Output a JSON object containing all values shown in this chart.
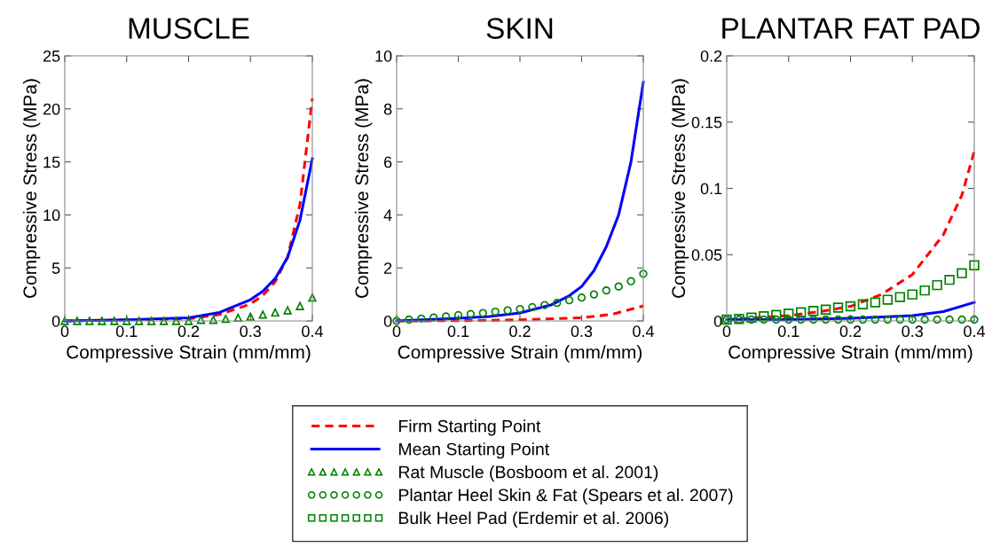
{
  "chart_data": [
    {
      "type": "line",
      "title": "MUSCLE",
      "xlabel": "Compressive Strain (mm/mm)",
      "ylabel": "Compressive Stress (MPa)",
      "xlim": [
        0,
        0.4
      ],
      "xticks": [
        0,
        0.1,
        0.2,
        0.3,
        0.4
      ],
      "ylim": [
        0,
        25
      ],
      "yticks": [
        0,
        5,
        10,
        15,
        20,
        25
      ],
      "grid": false,
      "legend": "bottom",
      "series": [
        {
          "name": "Firm Starting Point",
          "type": "line",
          "color": "#ff0000",
          "line_style": "dashed",
          "x": [
            0,
            0.1,
            0.2,
            0.25,
            0.3,
            0.32,
            0.34,
            0.36,
            0.38,
            0.4
          ],
          "values": [
            0,
            0.1,
            0.2,
            0.6,
            1.6,
            2.4,
            3.7,
            6,
            11,
            21
          ]
        },
        {
          "name": "Mean Starting Point",
          "type": "line",
          "color": "#0000ff",
          "line_style": "solid",
          "x": [
            0,
            0.1,
            0.2,
            0.25,
            0.3,
            0.32,
            0.34,
            0.36,
            0.38,
            0.4
          ],
          "values": [
            0,
            0.1,
            0.3,
            0.8,
            2.0,
            2.8,
            4.0,
            6.0,
            9.5,
            15.3
          ]
        },
        {
          "name": "Rat Muscle (Bosboom et al. 2001)",
          "type": "scatter",
          "color": "#008000",
          "marker": "triangle",
          "x": [
            0,
            0.02,
            0.04,
            0.06,
            0.08,
            0.1,
            0.12,
            0.14,
            0.16,
            0.18,
            0.2,
            0.22,
            0.24,
            0.26,
            0.28,
            0.3,
            0.32,
            0.34,
            0.36,
            0.38,
            0.4
          ],
          "values": [
            0,
            0,
            0,
            0,
            0,
            0,
            0,
            0,
            0,
            0,
            0,
            0.1,
            0.1,
            0.2,
            0.3,
            0.4,
            0.6,
            0.8,
            1.0,
            1.4,
            2.2
          ]
        }
      ]
    },
    {
      "type": "line",
      "title": "SKIN",
      "xlabel": "Compressive Strain (mm/mm)",
      "ylabel": "Compressive Stress (MPa)",
      "xlim": [
        0,
        0.4
      ],
      "xticks": [
        0,
        0.1,
        0.2,
        0.3,
        0.4
      ],
      "ylim": [
        0,
        10
      ],
      "yticks": [
        0,
        2,
        4,
        6,
        8,
        10
      ],
      "grid": false,
      "series": [
        {
          "type": "line",
          "color": "#ff0000",
          "line_style": "dashed",
          "x": [
            0,
            0.1,
            0.2,
            0.3,
            0.35,
            0.4
          ],
          "values": [
            0,
            0.01,
            0.04,
            0.12,
            0.25,
            0.57
          ]
        },
        {
          "type": "line",
          "color": "#0000ff",
          "line_style": "solid",
          "x": [
            0,
            0.1,
            0.15,
            0.2,
            0.25,
            0.28,
            0.3,
            0.32,
            0.34,
            0.36,
            0.38,
            0.4
          ],
          "values": [
            0,
            0.1,
            0.17,
            0.3,
            0.6,
            0.95,
            1.3,
            1.9,
            2.8,
            4.0,
            6.0,
            9.0
          ]
        },
        {
          "name": "Plantar Heel Skin & Fat (Spears et al. 2007)",
          "type": "scatter",
          "color": "#008000",
          "marker": "circle",
          "x": [
            0,
            0.02,
            0.04,
            0.06,
            0.08,
            0.1,
            0.12,
            0.14,
            0.16,
            0.18,
            0.2,
            0.22,
            0.24,
            0.26,
            0.28,
            0.3,
            0.32,
            0.34,
            0.36,
            0.38,
            0.4
          ],
          "values": [
            0,
            0.05,
            0.09,
            0.13,
            0.17,
            0.22,
            0.26,
            0.3,
            0.35,
            0.4,
            0.45,
            0.52,
            0.6,
            0.68,
            0.78,
            0.88,
            1.0,
            1.15,
            1.3,
            1.5,
            1.78
          ]
        }
      ]
    },
    {
      "type": "line",
      "title": "PLANTAR FAT PAD",
      "xlabel": "Compressive Strain (mm/mm)",
      "ylabel": "Compressive Stress (MPa)",
      "xlim": [
        0,
        0.4
      ],
      "xticks": [
        0,
        0.1,
        0.2,
        0.3,
        0.4
      ],
      "ylim": [
        0,
        0.2
      ],
      "yticks": [
        0,
        0.05,
        0.1,
        0.15,
        0.2
      ],
      "grid": false,
      "series": [
        {
          "type": "line",
          "color": "#ff0000",
          "line_style": "dashed",
          "x": [
            0,
            0.1,
            0.15,
            0.2,
            0.25,
            0.3,
            0.35,
            0.38,
            0.4
          ],
          "values": [
            0.001,
            0.004,
            0.007,
            0.011,
            0.02,
            0.035,
            0.065,
            0.095,
            0.128
          ]
        },
        {
          "type": "line",
          "color": "#0000ff",
          "line_style": "solid",
          "x": [
            0,
            0.1,
            0.2,
            0.3,
            0.35,
            0.4
          ],
          "values": [
            0.001,
            0.001,
            0.002,
            0.004,
            0.007,
            0.014
          ]
        },
        {
          "type": "scatter",
          "color": "#008000",
          "marker": "circle",
          "x": [
            0,
            0.02,
            0.04,
            0.06,
            0.08,
            0.1,
            0.12,
            0.14,
            0.16,
            0.18,
            0.2,
            0.22,
            0.24,
            0.26,
            0.28,
            0.3,
            0.32,
            0.34,
            0.36,
            0.38,
            0.4
          ],
          "values": [
            0.001,
            0.001,
            0.001,
            0.001,
            0.001,
            0.001,
            0.001,
            0.001,
            0.001,
            0.001,
            0.001,
            0.001,
            0.001,
            0.001,
            0.001,
            0.001,
            0.001,
            0.001,
            0.001,
            0.001,
            0.001
          ]
        },
        {
          "name": "Bulk Heel Pad (Erdemir et al. 2006)",
          "type": "scatter",
          "color": "#008000",
          "marker": "square",
          "x": [
            0,
            0.02,
            0.04,
            0.06,
            0.08,
            0.1,
            0.12,
            0.14,
            0.16,
            0.18,
            0.2,
            0.22,
            0.24,
            0.26,
            0.28,
            0.3,
            0.32,
            0.34,
            0.36,
            0.38,
            0.4
          ],
          "values": [
            0.001,
            0.0015,
            0.0025,
            0.0035,
            0.0045,
            0.0055,
            0.0065,
            0.0075,
            0.0085,
            0.01,
            0.011,
            0.0125,
            0.014,
            0.016,
            0.018,
            0.02,
            0.023,
            0.027,
            0.031,
            0.036,
            0.042
          ]
        }
      ]
    }
  ]
}
